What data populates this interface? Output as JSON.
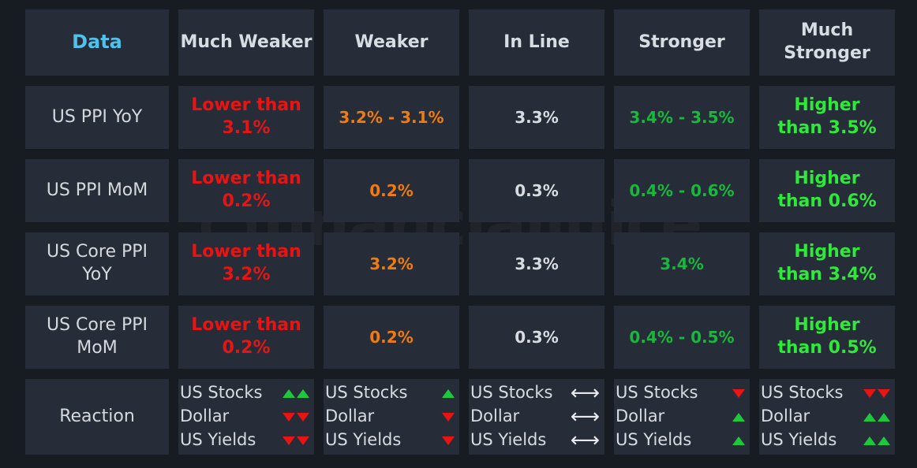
{
  "watermark": "financialjuice",
  "headers": [
    "Data",
    "Much Weaker",
    "Weaker",
    "In Line",
    "Stronger",
    "Much Stronger"
  ],
  "rows": [
    {
      "label": "US PPI YoY",
      "values": [
        "Lower than 3.1%",
        "3.2% - 3.1%",
        "3.3%",
        "3.4% - 3.5%",
        "Higher than 3.5%"
      ]
    },
    {
      "label": "US PPI MoM",
      "values": [
        "Lower than 0.2%",
        "0.2%",
        "0.3%",
        "0.4% - 0.6%",
        "Higher than 0.6%"
      ]
    },
    {
      "label": "US Core PPI YoY",
      "values": [
        "Lower than 3.2%",
        "3.2%",
        "3.3%",
        "3.4%",
        "Higher than 3.4%"
      ]
    },
    {
      "label": "US Core PPI MoM",
      "values": [
        "Lower than 0.2%",
        "0.2%",
        "0.3%",
        "0.4% - 0.5%",
        "Higher than 0.5%"
      ]
    }
  ],
  "reaction": {
    "label": "Reaction",
    "items": [
      "US Stocks",
      "Dollar",
      "US Yields"
    ],
    "columns": [
      [
        "up-up",
        "down-down",
        "down-down"
      ],
      [
        "up",
        "down",
        "down"
      ],
      [
        "neutral",
        "neutral",
        "neutral"
      ],
      [
        "down",
        "up",
        "up"
      ],
      [
        "down-down",
        "up-up",
        "up-up"
      ]
    ]
  },
  "colors": {
    "background": "#171b22",
    "cell": "#262d38",
    "header_accent": "#4fc2ec",
    "much_weaker": "#e81414",
    "weaker": "#f07b10",
    "in_line": "#d8dce2",
    "stronger": "#18b83c",
    "much_stronger": "#2ee83a"
  }
}
